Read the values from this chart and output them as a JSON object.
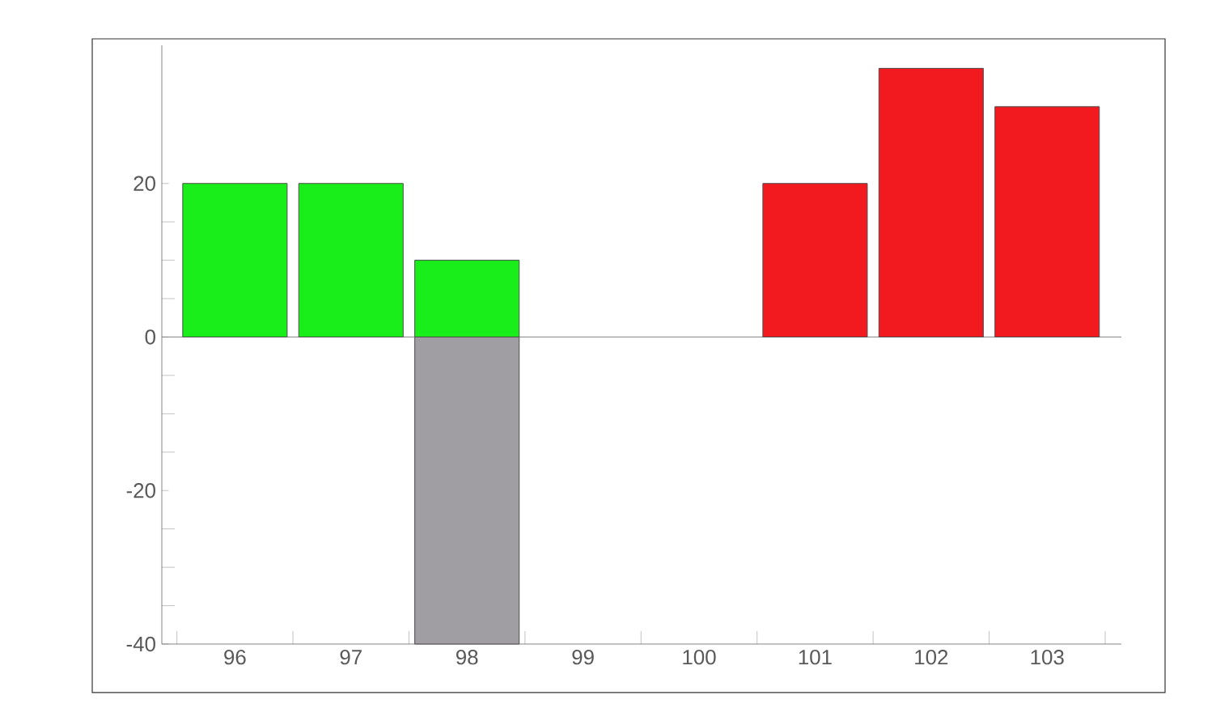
{
  "chart_data": {
    "type": "bar",
    "categories": [
      "96",
      "97",
      "98",
      "99",
      "100",
      "101",
      "102",
      "103"
    ],
    "series": [
      {
        "color": "#1aee1a",
        "values": [
          20,
          20,
          10,
          null,
          null,
          null,
          null,
          null
        ]
      },
      {
        "color": "#a09ea2",
        "values": [
          null,
          null,
          -40,
          null,
          null,
          null,
          null,
          null
        ]
      },
      {
        "color": "#f21a1f",
        "values": [
          null,
          null,
          null,
          null,
          null,
          20,
          35,
          30
        ]
      }
    ],
    "ylim": [
      -40,
      38
    ],
    "yticks": [
      -40,
      -20,
      0,
      20
    ]
  }
}
